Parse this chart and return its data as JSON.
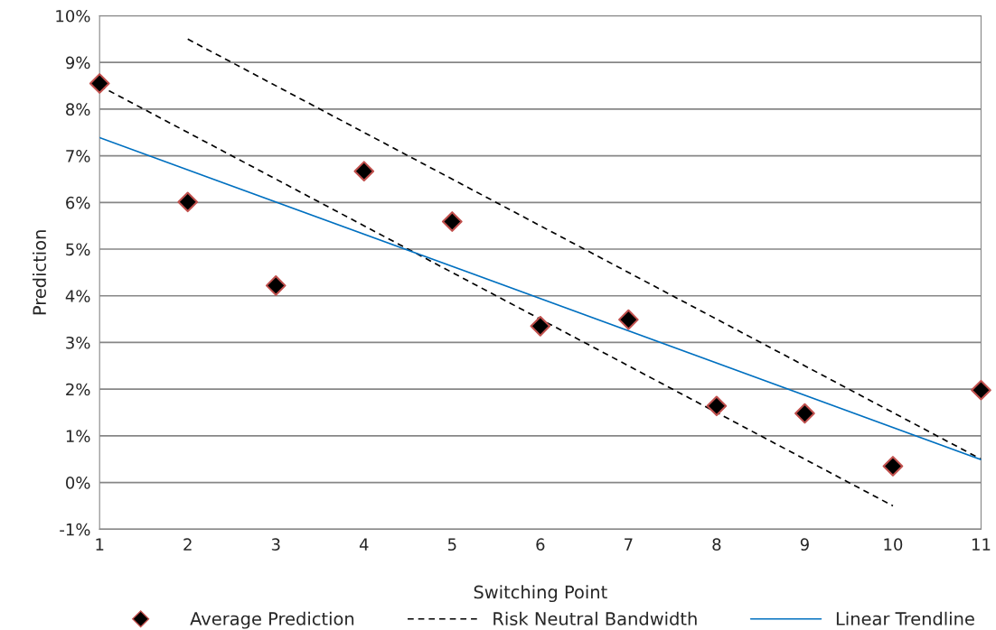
{
  "chart_data": {
    "type": "scatter",
    "xlabel": "Switching Point",
    "ylabel": "Prediction",
    "x": [
      1,
      2,
      3,
      4,
      5,
      6,
      7,
      8,
      9,
      10,
      11
    ],
    "series": [
      {
        "name": "Average Prediction",
        "marker": "diamond",
        "color": "#000000",
        "values": [
          8.55,
          6.01,
          4.22,
          6.67,
          5.59,
          3.35,
          3.49,
          1.64,
          1.48,
          0.35,
          1.98
        ]
      },
      {
        "name": "Risk Neutral Bandwidth",
        "type": "line",
        "color": "#000000",
        "x": [
          2,
          11
        ],
        "values": [
          9.5,
          0.5
        ],
        "line_style": "dashed",
        "marker": "none"
      },
      {
        "type": "line",
        "color": "#000000",
        "x": [
          1,
          10
        ],
        "values": [
          8.5,
          -0.5
        ],
        "line_style": "dashed",
        "marker": "none"
      },
      {
        "name": "Linear Trendline",
        "type": "line",
        "color": "#0070c0",
        "x": [
          1,
          11
        ],
        "values": [
          7.39,
          0.49
        ],
        "line_style": "solid",
        "marker": "none"
      }
    ],
    "xlim": [
      1,
      11
    ],
    "xticks": [
      1,
      2,
      3,
      4,
      5,
      6,
      7,
      8,
      9,
      10,
      11
    ],
    "ylim": [
      -1,
      10
    ],
    "yticks": [
      {
        "value": -1,
        "label": "-1%"
      },
      {
        "value": 0,
        "label": "0%"
      },
      {
        "value": 1,
        "label": "1%"
      },
      {
        "value": 2,
        "label": "2%"
      },
      {
        "value": 3,
        "label": "3%"
      },
      {
        "value": 4,
        "label": "4%"
      },
      {
        "value": 5,
        "label": "5%"
      },
      {
        "value": 6,
        "label": "6%"
      },
      {
        "value": 7,
        "label": "7%"
      },
      {
        "value": 8,
        "label": "8%"
      },
      {
        "value": 9,
        "label": "9%"
      },
      {
        "value": 10,
        "label": "10%"
      }
    ],
    "grid": "y",
    "legend": "bottom"
  }
}
